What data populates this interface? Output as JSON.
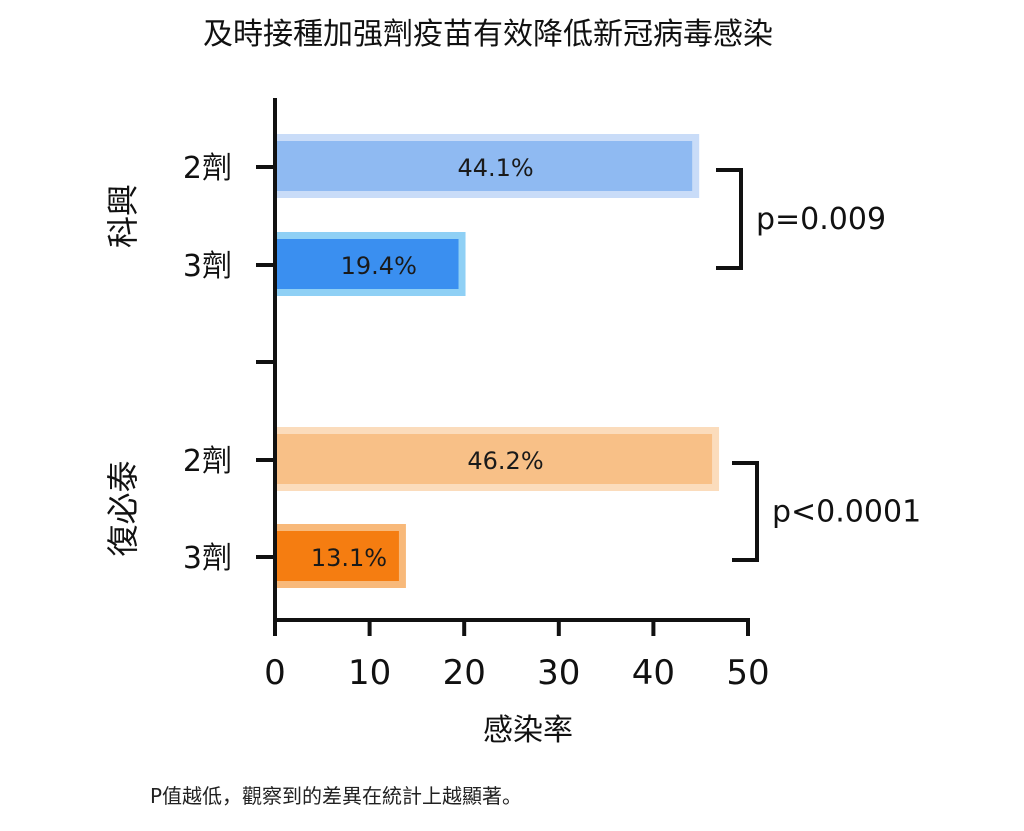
{
  "title": "及時接種加强劑疫苗有效降低新冠病毒感染",
  "footnote": "P值越低，觀察到的差異在統計上越顯著。",
  "chart_data": {
    "type": "bar",
    "orientation": "horizontal",
    "title": "及時接種加强劑疫苗有效降低新冠病毒感染",
    "xlabel": "感染率",
    "xlim": [
      0,
      50
    ],
    "xticks": [
      0,
      10,
      20,
      30,
      40,
      50
    ],
    "grid": false,
    "groups": [
      {
        "name": "科興",
        "pvalue_label": "p=0.009",
        "bars": [
          {
            "category": "2劑",
            "value": 44.1,
            "label": "44.1%",
            "color": "#8fbaf2",
            "halo": "#c9dcf8"
          },
          {
            "category": "3劑",
            "value": 19.4,
            "label": "19.4%",
            "color": "#3a8ff0",
            "halo": "#8fd0f5"
          }
        ]
      },
      {
        "name": "復必泰",
        "pvalue_label": "p<0.0001",
        "bars": [
          {
            "category": "2劑",
            "value": 46.2,
            "label": "46.2%",
            "color": "#f8c087",
            "halo": "#fbdcbc"
          },
          {
            "category": "3劑",
            "value": 13.1,
            "label": "13.1%",
            "color": "#f57d11",
            "halo": "#f8b97a"
          }
        ]
      }
    ]
  }
}
